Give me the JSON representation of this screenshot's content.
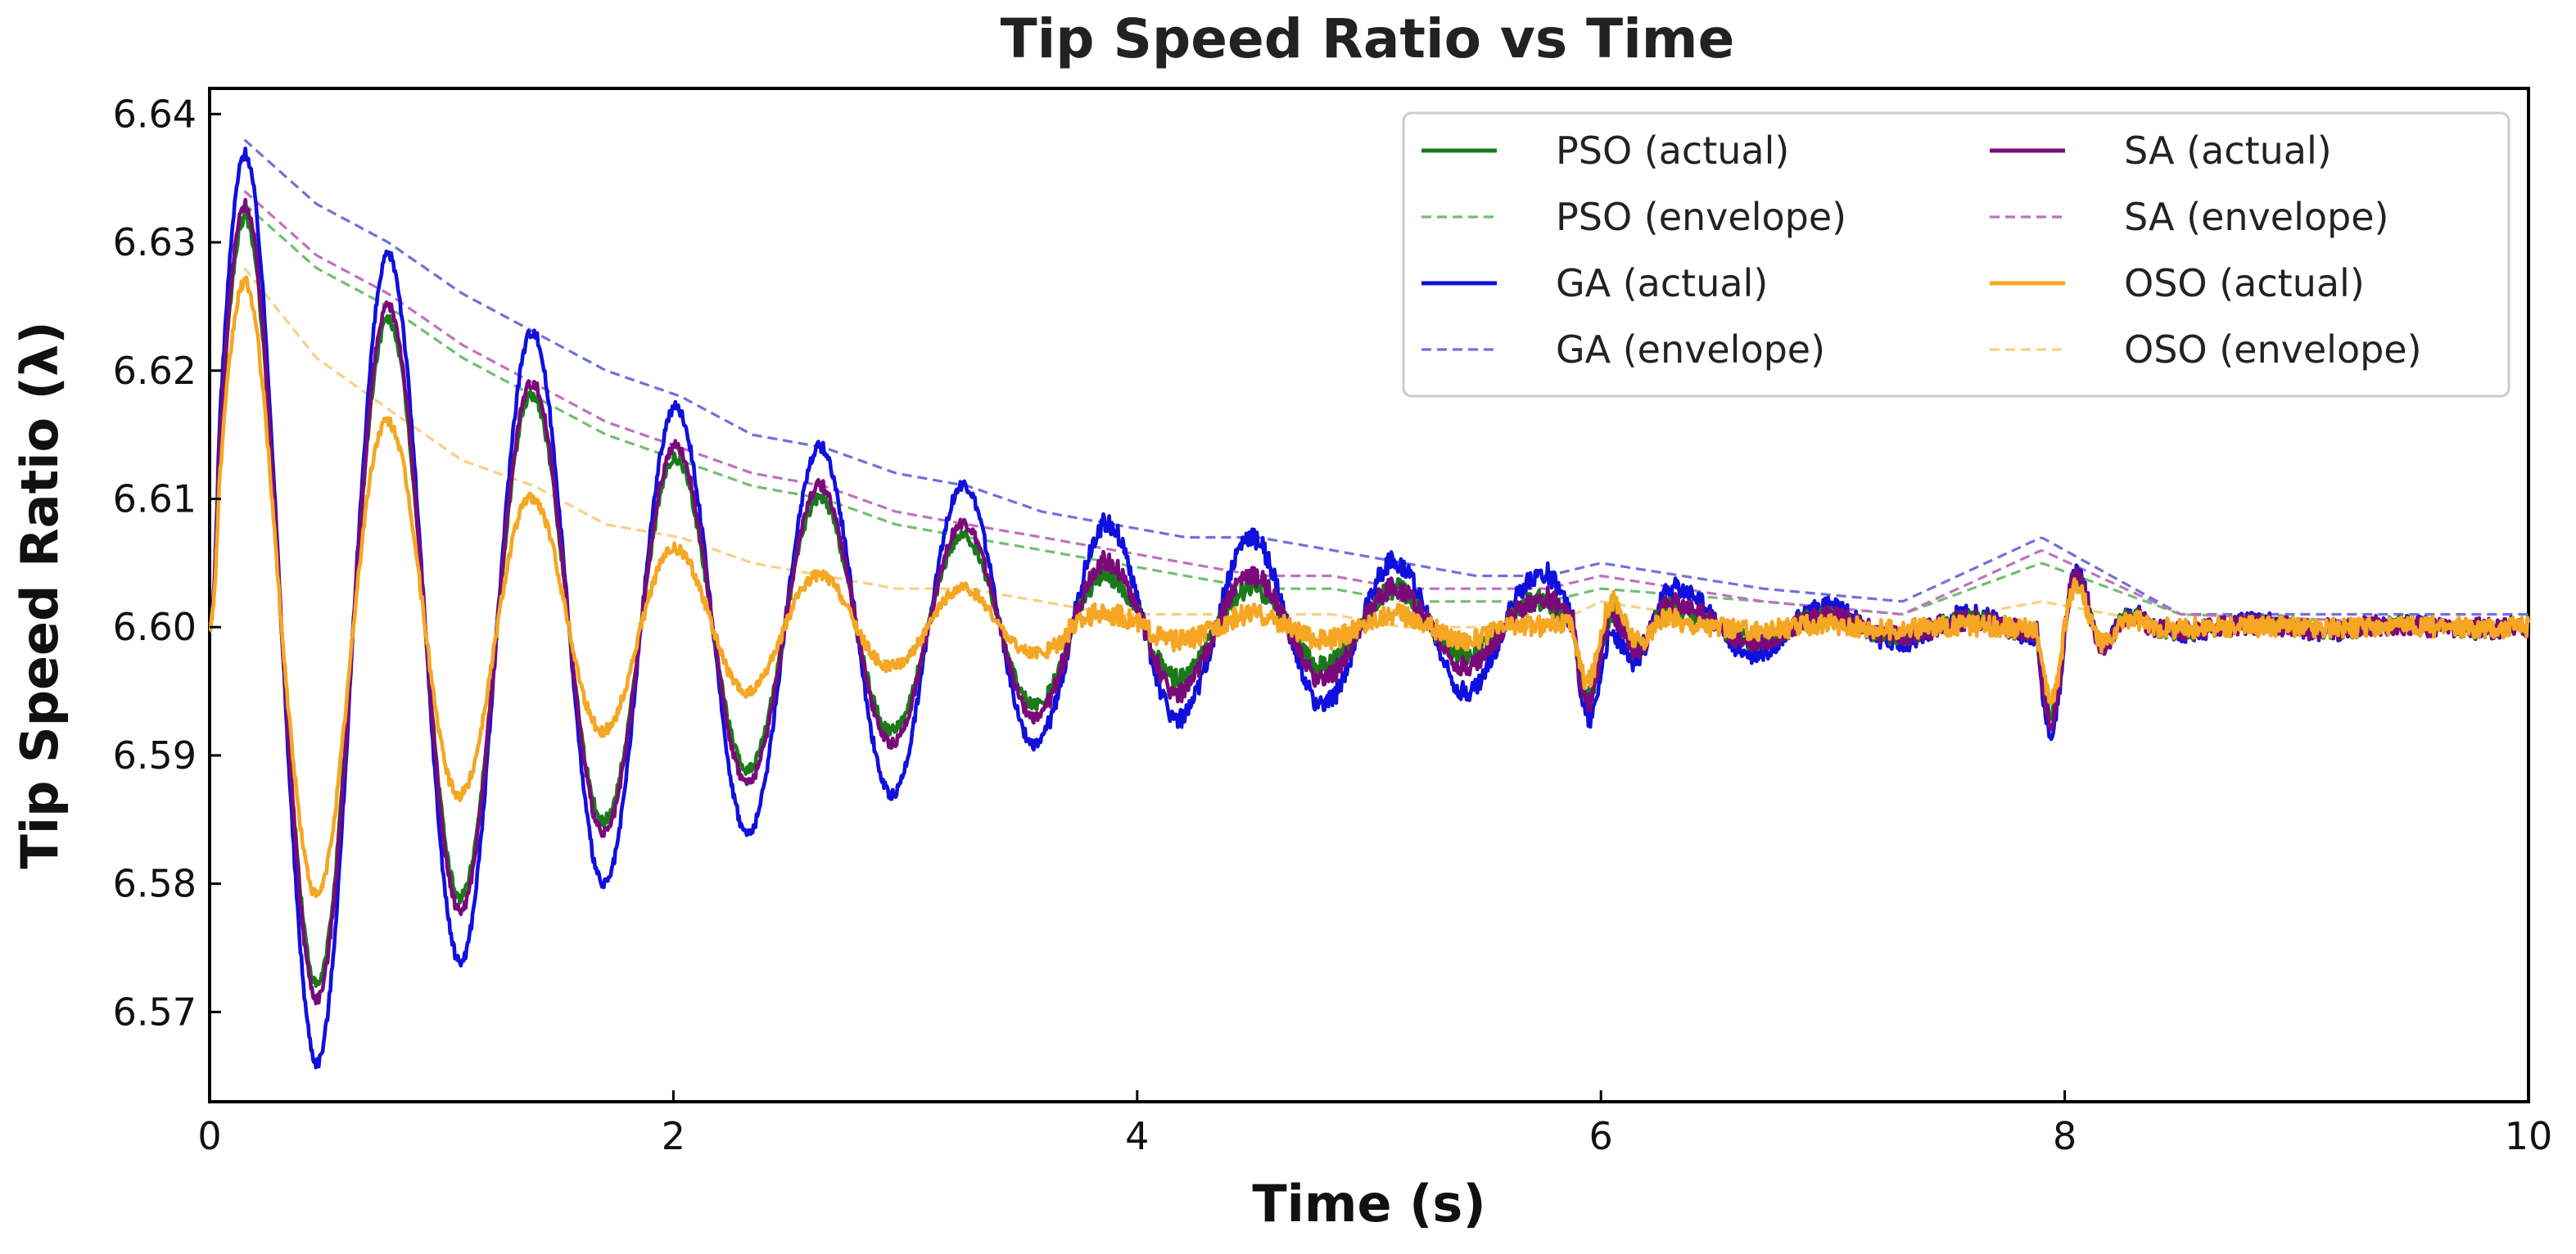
{
  "chart_data": {
    "type": "line",
    "title": "Tip Speed Ratio vs Time",
    "xlabel": "Time (s)",
    "ylabel": "Tip Speed Ratio (λ)",
    "xlim": [
      0,
      10
    ],
    "ylim": [
      6.563,
      6.642
    ],
    "xticks": [
      0,
      2,
      4,
      6,
      8,
      10
    ],
    "yticks": [
      6.57,
      6.58,
      6.59,
      6.6,
      6.61,
      6.62,
      6.63,
      6.64
    ],
    "xtick_labels": [
      "0",
      "2",
      "4",
      "6",
      "8",
      "10"
    ],
    "ytick_labels": [
      "6.57",
      "6.58",
      "6.59",
      "6.60",
      "6.61",
      "6.62",
      "6.63",
      "6.64"
    ],
    "grid": false,
    "legend_position": "top-right",
    "baseline": 6.6,
    "oscillation_period_s": 0.62,
    "series": [
      {
        "name": "PSO (actual)",
        "color": "#1a7a1a",
        "style": "solid",
        "peaks": [
          {
            "t": 0.15,
            "v": 6.632
          },
          {
            "t": 0.77,
            "v": 6.624
          },
          {
            "t": 1.4,
            "v": 6.618
          },
          {
            "t": 2.03,
            "v": 6.613
          },
          {
            "t": 2.65,
            "v": 6.61
          },
          {
            "t": 3.27,
            "v": 6.607
          },
          {
            "t": 3.9,
            "v": 6.604
          },
          {
            "t": 4.52,
            "v": 6.603
          },
          {
            "t": 5.15,
            "v": 6.603
          },
          {
            "t": 5.77,
            "v": 6.602
          }
        ],
        "troughs": [
          {
            "t": 0.46,
            "v": 6.572
          },
          {
            "t": 1.09,
            "v": 6.579
          },
          {
            "t": 1.71,
            "v": 6.585
          },
          {
            "t": 2.34,
            "v": 6.589
          },
          {
            "t": 2.96,
            "v": 6.592
          },
          {
            "t": 3.59,
            "v": 6.594
          },
          {
            "t": 4.21,
            "v": 6.596
          },
          {
            "t": 4.84,
            "v": 6.597
          },
          {
            "t": 5.46,
            "v": 6.598
          }
        ]
      },
      {
        "name": "PSO (envelope)",
        "color": "#6fbf6f",
        "style": "dashed",
        "peaks": [
          {
            "t": 0.15,
            "v": 6.633
          },
          {
            "t": 0.46,
            "v": 6.628
          },
          {
            "t": 0.77,
            "v": 6.625
          },
          {
            "t": 1.09,
            "v": 6.621
          },
          {
            "t": 1.4,
            "v": 6.618
          },
          {
            "t": 1.71,
            "v": 6.615
          },
          {
            "t": 2.03,
            "v": 6.613
          },
          {
            "t": 2.34,
            "v": 6.611
          },
          {
            "t": 2.65,
            "v": 6.61
          },
          {
            "t": 2.96,
            "v": 6.608
          },
          {
            "t": 3.27,
            "v": 6.607
          },
          {
            "t": 3.59,
            "v": 6.606
          },
          {
            "t": 3.9,
            "v": 6.605
          },
          {
            "t": 4.21,
            "v": 6.604
          },
          {
            "t": 4.52,
            "v": 6.603
          },
          {
            "t": 4.84,
            "v": 6.603
          },
          {
            "t": 5.15,
            "v": 6.602
          },
          {
            "t": 5.46,
            "v": 6.602
          },
          {
            "t": 5.77,
            "v": 6.602
          },
          {
            "t": 6.0,
            "v": 6.603
          },
          {
            "t": 6.7,
            "v": 6.602
          },
          {
            "t": 7.3,
            "v": 6.601
          },
          {
            "t": 7.9,
            "v": 6.605
          },
          {
            "t": 8.5,
            "v": 6.601
          },
          {
            "t": 10,
            "v": 6.6
          }
        ]
      },
      {
        "name": "GA (actual)",
        "color": "#1010dd",
        "style": "solid",
        "peaks": [
          {
            "t": 0.15,
            "v": 6.637
          },
          {
            "t": 0.77,
            "v": 6.629
          },
          {
            "t": 1.4,
            "v": 6.623
          },
          {
            "t": 2.03,
            "v": 6.617
          },
          {
            "t": 2.65,
            "v": 6.614
          },
          {
            "t": 3.27,
            "v": 6.611
          },
          {
            "t": 3.9,
            "v": 6.608
          },
          {
            "t": 4.52,
            "v": 6.607
          },
          {
            "t": 5.15,
            "v": 6.605
          },
          {
            "t": 5.77,
            "v": 6.604
          }
        ],
        "troughs": [
          {
            "t": 0.46,
            "v": 6.566
          },
          {
            "t": 1.09,
            "v": 6.574
          },
          {
            "t": 1.71,
            "v": 6.58
          },
          {
            "t": 2.34,
            "v": 6.584
          },
          {
            "t": 2.96,
            "v": 6.587
          },
          {
            "t": 3.59,
            "v": 6.591
          },
          {
            "t": 4.21,
            "v": 6.593
          },
          {
            "t": 4.84,
            "v": 6.594
          },
          {
            "t": 5.46,
            "v": 6.595
          }
        ]
      },
      {
        "name": "GA (envelope)",
        "color": "#7070dd",
        "style": "dashed",
        "peaks": [
          {
            "t": 0.15,
            "v": 6.638
          },
          {
            "t": 0.46,
            "v": 6.633
          },
          {
            "t": 0.77,
            "v": 6.63
          },
          {
            "t": 1.09,
            "v": 6.626
          },
          {
            "t": 1.4,
            "v": 6.623
          },
          {
            "t": 1.71,
            "v": 6.62
          },
          {
            "t": 2.03,
            "v": 6.618
          },
          {
            "t": 2.34,
            "v": 6.615
          },
          {
            "t": 2.65,
            "v": 6.614
          },
          {
            "t": 2.96,
            "v": 6.612
          },
          {
            "t": 3.27,
            "v": 6.611
          },
          {
            "t": 3.59,
            "v": 6.609
          },
          {
            "t": 3.9,
            "v": 6.608
          },
          {
            "t": 4.21,
            "v": 6.607
          },
          {
            "t": 4.52,
            "v": 6.607
          },
          {
            "t": 4.84,
            "v": 6.606
          },
          {
            "t": 5.15,
            "v": 6.605
          },
          {
            "t": 5.46,
            "v": 6.604
          },
          {
            "t": 5.77,
            "v": 6.604
          },
          {
            "t": 6.0,
            "v": 6.605
          },
          {
            "t": 6.7,
            "v": 6.603
          },
          {
            "t": 7.3,
            "v": 6.602
          },
          {
            "t": 7.9,
            "v": 6.607
          },
          {
            "t": 8.5,
            "v": 6.601
          },
          {
            "t": 10,
            "v": 6.601
          }
        ]
      },
      {
        "name": "SA (actual)",
        "color": "#7a0a7a",
        "style": "solid",
        "peaks": [
          {
            "t": 0.15,
            "v": 6.633
          },
          {
            "t": 0.77,
            "v": 6.625
          },
          {
            "t": 1.4,
            "v": 6.619
          },
          {
            "t": 2.03,
            "v": 6.614
          },
          {
            "t": 2.65,
            "v": 6.611
          },
          {
            "t": 3.27,
            "v": 6.608
          },
          {
            "t": 3.9,
            "v": 6.605
          },
          {
            "t": 4.52,
            "v": 6.604
          },
          {
            "t": 5.15,
            "v": 6.603
          },
          {
            "t": 5.77,
            "v": 6.602
          }
        ],
        "troughs": [
          {
            "t": 0.46,
            "v": 6.571
          },
          {
            "t": 1.09,
            "v": 6.578
          },
          {
            "t": 1.71,
            "v": 6.584
          },
          {
            "t": 2.34,
            "v": 6.588
          },
          {
            "t": 2.96,
            "v": 6.591
          },
          {
            "t": 3.59,
            "v": 6.593
          },
          {
            "t": 4.21,
            "v": 6.595
          },
          {
            "t": 4.84,
            "v": 6.596
          },
          {
            "t": 5.46,
            "v": 6.597
          }
        ]
      },
      {
        "name": "SA (envelope)",
        "color": "#c070c0",
        "style": "dashed",
        "peaks": [
          {
            "t": 0.15,
            "v": 6.634
          },
          {
            "t": 0.46,
            "v": 6.629
          },
          {
            "t": 0.77,
            "v": 6.626
          },
          {
            "t": 1.09,
            "v": 6.622
          },
          {
            "t": 1.4,
            "v": 6.619
          },
          {
            "t": 1.71,
            "v": 6.616
          },
          {
            "t": 2.03,
            "v": 6.614
          },
          {
            "t": 2.34,
            "v": 6.612
          },
          {
            "t": 2.65,
            "v": 6.611
          },
          {
            "t": 2.96,
            "v": 6.609
          },
          {
            "t": 3.27,
            "v": 6.608
          },
          {
            "t": 3.59,
            "v": 6.607
          },
          {
            "t": 3.9,
            "v": 6.606
          },
          {
            "t": 4.21,
            "v": 6.605
          },
          {
            "t": 4.52,
            "v": 6.604
          },
          {
            "t": 4.84,
            "v": 6.604
          },
          {
            "t": 5.15,
            "v": 6.603
          },
          {
            "t": 5.46,
            "v": 6.603
          },
          {
            "t": 5.77,
            "v": 6.603
          },
          {
            "t": 6.0,
            "v": 6.604
          },
          {
            "t": 6.7,
            "v": 6.602
          },
          {
            "t": 7.3,
            "v": 6.601
          },
          {
            "t": 7.9,
            "v": 6.606
          },
          {
            "t": 8.5,
            "v": 6.601
          },
          {
            "t": 10,
            "v": 6.6
          }
        ]
      },
      {
        "name": "OSO (actual)",
        "color": "#f5a623",
        "style": "solid",
        "peaks": [
          {
            "t": 0.15,
            "v": 6.627
          },
          {
            "t": 0.77,
            "v": 6.616
          },
          {
            "t": 1.4,
            "v": 6.61
          },
          {
            "t": 2.03,
            "v": 6.606
          },
          {
            "t": 2.65,
            "v": 6.604
          },
          {
            "t": 3.27,
            "v": 6.603
          },
          {
            "t": 3.9,
            "v": 6.601
          },
          {
            "t": 4.52,
            "v": 6.601
          },
          {
            "t": 5.15,
            "v": 6.601
          },
          {
            "t": 5.77,
            "v": 6.6
          }
        ],
        "troughs": [
          {
            "t": 0.46,
            "v": 6.579
          },
          {
            "t": 1.09,
            "v": 6.587
          },
          {
            "t": 1.71,
            "v": 6.592
          },
          {
            "t": 2.34,
            "v": 6.595
          },
          {
            "t": 2.96,
            "v": 6.597
          },
          {
            "t": 3.59,
            "v": 6.598
          },
          {
            "t": 4.21,
            "v": 6.599
          },
          {
            "t": 4.84,
            "v": 6.599
          },
          {
            "t": 5.46,
            "v": 6.599
          }
        ]
      },
      {
        "name": "OSO (envelope)",
        "color": "#f8cf85",
        "style": "dashed",
        "peaks": [
          {
            "t": 0.15,
            "v": 6.628
          },
          {
            "t": 0.46,
            "v": 6.621
          },
          {
            "t": 0.77,
            "v": 6.617
          },
          {
            "t": 1.09,
            "v": 6.613
          },
          {
            "t": 1.4,
            "v": 6.611
          },
          {
            "t": 1.71,
            "v": 6.608
          },
          {
            "t": 2.03,
            "v": 6.607
          },
          {
            "t": 2.34,
            "v": 6.605
          },
          {
            "t": 2.65,
            "v": 6.604
          },
          {
            "t": 2.96,
            "v": 6.603
          },
          {
            "t": 3.27,
            "v": 6.603
          },
          {
            "t": 3.59,
            "v": 6.602
          },
          {
            "t": 3.9,
            "v": 6.601
          },
          {
            "t": 4.21,
            "v": 6.601
          },
          {
            "t": 4.52,
            "v": 6.601
          },
          {
            "t": 4.84,
            "v": 6.601
          },
          {
            "t": 5.15,
            "v": 6.6
          },
          {
            "t": 5.46,
            "v": 6.6
          },
          {
            "t": 5.77,
            "v": 6.6
          },
          {
            "t": 6.0,
            "v": 6.602
          },
          {
            "t": 6.7,
            "v": 6.6
          },
          {
            "t": 7.3,
            "v": 6.6
          },
          {
            "t": 7.9,
            "v": 6.602
          },
          {
            "t": 8.5,
            "v": 6.6
          },
          {
            "t": 10,
            "v": 6.6
          }
        ]
      }
    ],
    "disturbances": [
      {
        "t": 6.0,
        "pso": 0.0045,
        "ga": 0.005,
        "sa": 0.0047,
        "oso": 0.004
      },
      {
        "t": 8.0,
        "pso": 0.0065,
        "ga": 0.0075,
        "sa": 0.007,
        "oso": 0.0055
      }
    ]
  }
}
